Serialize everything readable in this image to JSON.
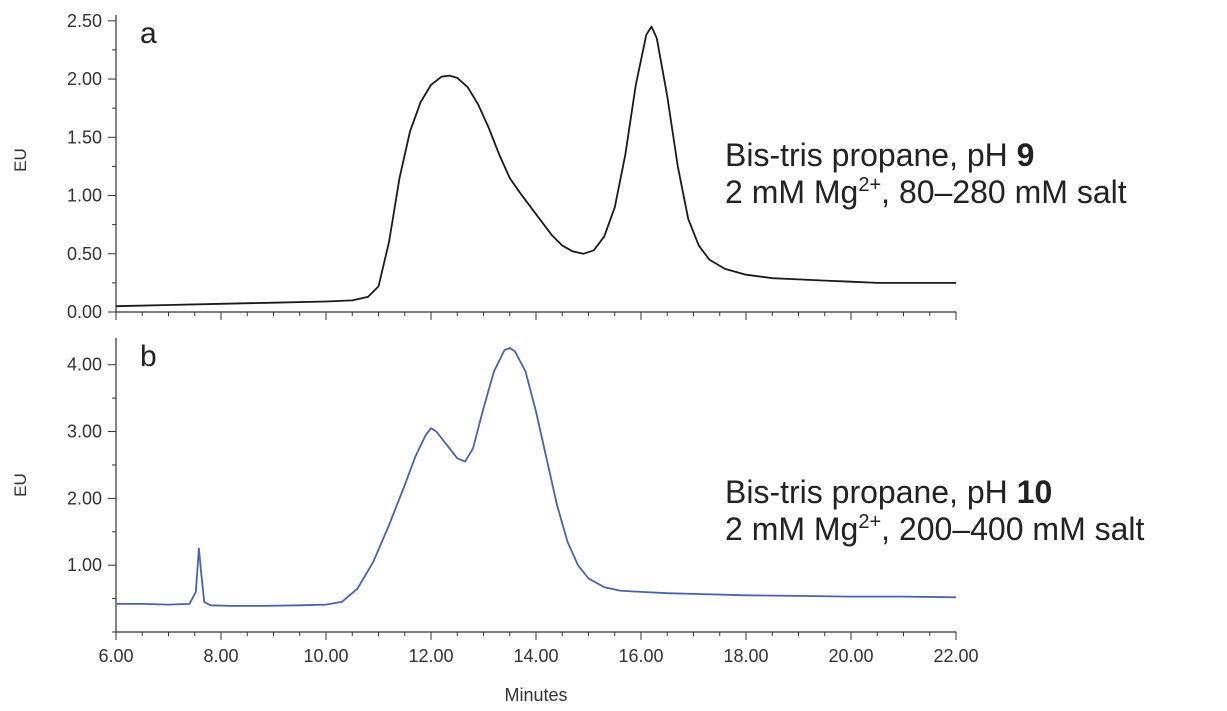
{
  "chart_data": [
    {
      "type": "line",
      "panel_label": "a",
      "ylabel": "EU",
      "xlabel": "",
      "xlim": [
        6,
        22
      ],
      "ylim": [
        0,
        2.55
      ],
      "yticks": [
        "0.00",
        "0.50",
        "1.00",
        "1.50",
        "2.00",
        "2.50"
      ],
      "annotation_lines": [
        [
          "Bis-tris propane, pH ",
          "9"
        ],
        [
          "2 mM Mg",
          "2+",
          ", 80–280 mM salt"
        ]
      ],
      "series": [
        {
          "color": "#1a1a1a",
          "x": [
            6.0,
            7.0,
            8.0,
            9.0,
            10.0,
            10.5,
            10.8,
            11.0,
            11.2,
            11.4,
            11.6,
            11.8,
            12.0,
            12.2,
            12.35,
            12.5,
            12.7,
            12.9,
            13.1,
            13.3,
            13.5,
            13.7,
            13.9,
            14.1,
            14.3,
            14.5,
            14.7,
            14.9,
            15.1,
            15.3,
            15.5,
            15.7,
            15.9,
            16.1,
            16.2,
            16.3,
            16.5,
            16.7,
            16.9,
            17.1,
            17.3,
            17.6,
            18.0,
            18.5,
            19.0,
            19.5,
            20.0,
            20.5,
            21.0,
            21.5,
            22.0
          ],
          "y": [
            0.05,
            0.06,
            0.07,
            0.08,
            0.09,
            0.1,
            0.13,
            0.22,
            0.6,
            1.15,
            1.55,
            1.8,
            1.95,
            2.02,
            2.03,
            2.01,
            1.93,
            1.78,
            1.58,
            1.35,
            1.15,
            1.02,
            0.9,
            0.78,
            0.66,
            0.57,
            0.52,
            0.5,
            0.53,
            0.65,
            0.9,
            1.35,
            1.95,
            2.38,
            2.45,
            2.35,
            1.85,
            1.25,
            0.8,
            0.57,
            0.45,
            0.37,
            0.32,
            0.29,
            0.28,
            0.27,
            0.26,
            0.25,
            0.25,
            0.25,
            0.25
          ]
        }
      ]
    },
    {
      "type": "line",
      "panel_label": "b",
      "ylabel": "EU",
      "xlabel": "Minutes",
      "xlim": [
        6,
        22
      ],
      "ylim": [
        0,
        4.4
      ],
      "yticks": [
        "1.00",
        "2.00",
        "3.00",
        "4.00"
      ],
      "xticks": [
        "6.00",
        "8.00",
        "10.00",
        "12.00",
        "14.00",
        "16.00",
        "18.00",
        "20.00",
        "22.00"
      ],
      "annotation_lines": [
        [
          "Bis-tris propane, pH ",
          "10"
        ],
        [
          "2 mM Mg",
          "2+",
          ", 200–400 mM salt"
        ]
      ],
      "series": [
        {
          "color": "#4a62a8",
          "x": [
            6.0,
            6.5,
            7.0,
            7.4,
            7.52,
            7.58,
            7.62,
            7.68,
            7.8,
            8.2,
            8.8,
            9.5,
            10.0,
            10.3,
            10.6,
            10.9,
            11.2,
            11.5,
            11.7,
            11.9,
            12.0,
            12.1,
            12.3,
            12.5,
            12.65,
            12.8,
            13.0,
            13.2,
            13.4,
            13.5,
            13.6,
            13.8,
            14.0,
            14.2,
            14.4,
            14.6,
            14.8,
            15.0,
            15.3,
            15.6,
            16.0,
            16.5,
            17.0,
            18.0,
            19.0,
            20.0,
            21.0,
            22.0
          ],
          "y": [
            0.42,
            0.42,
            0.41,
            0.42,
            0.6,
            1.25,
            0.9,
            0.45,
            0.4,
            0.39,
            0.39,
            0.4,
            0.41,
            0.45,
            0.65,
            1.05,
            1.6,
            2.2,
            2.62,
            2.95,
            3.05,
            3.0,
            2.8,
            2.6,
            2.55,
            2.75,
            3.35,
            3.9,
            4.22,
            4.25,
            4.2,
            3.9,
            3.3,
            2.6,
            1.9,
            1.35,
            1.0,
            0.8,
            0.67,
            0.62,
            0.6,
            0.58,
            0.57,
            0.55,
            0.54,
            0.53,
            0.53,
            0.52
          ]
        }
      ]
    }
  ]
}
